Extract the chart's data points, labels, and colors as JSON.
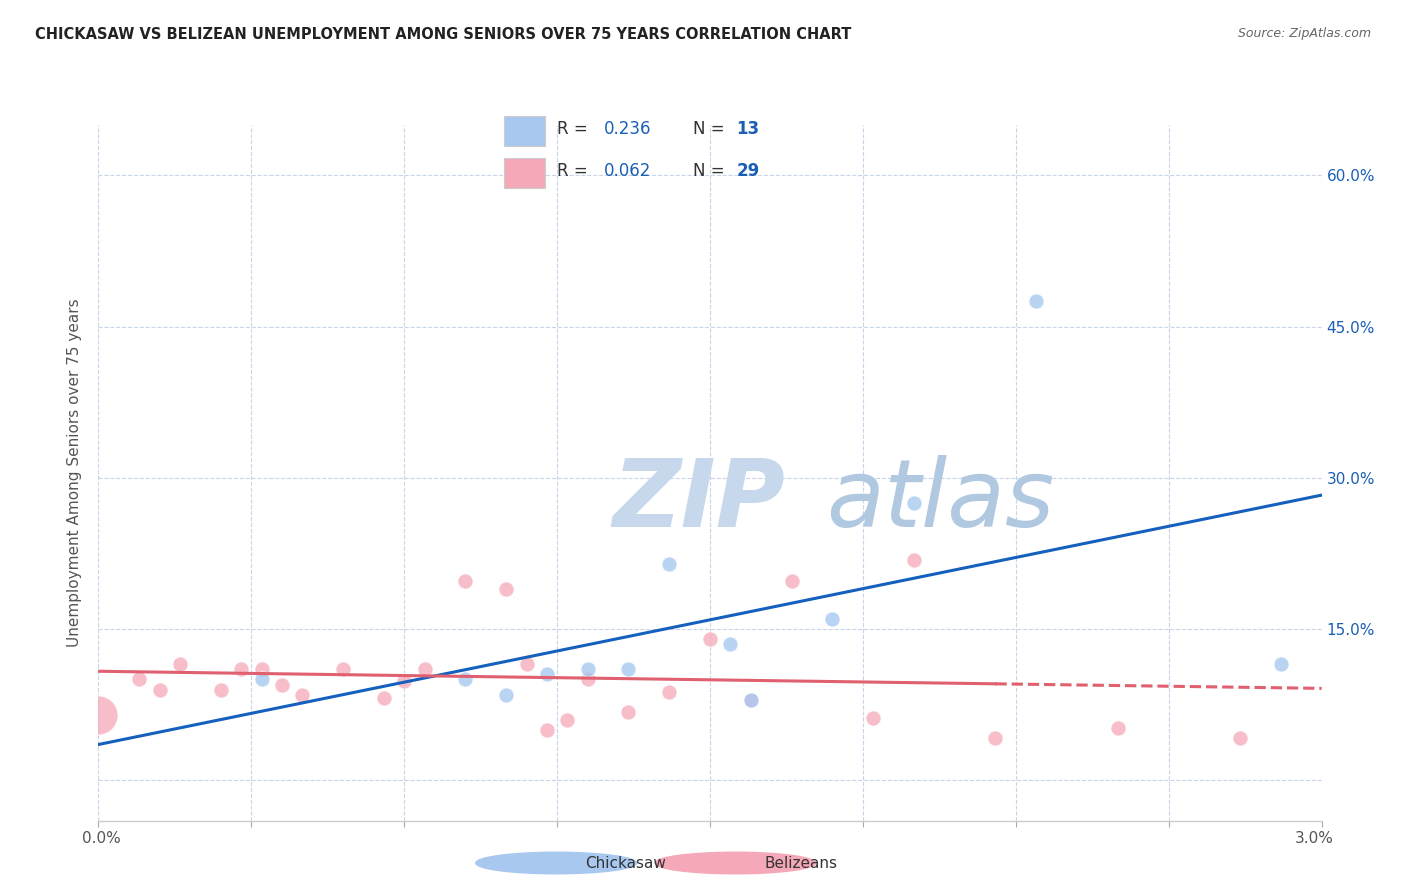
{
  "title": "CHICKASAW VS BELIZEAN UNEMPLOYMENT AMONG SENIORS OVER 75 YEARS CORRELATION CHART",
  "source": "Source: ZipAtlas.com",
  "ylabel": "Unemployment Among Seniors over 75 years",
  "xlim": [
    0.0,
    0.03
  ],
  "ylim": [
    -0.04,
    0.65
  ],
  "chickasaw_R": 0.236,
  "chickasaw_N": 13,
  "belizean_R": 0.062,
  "belizean_N": 29,
  "chickasaw_color": "#a8c8f0",
  "belizean_color": "#f5a8b8",
  "trendline_chickasaw_color": "#1560bd",
  "trendline_belizean_color": "#e06070",
  "watermark_zip": "ZIP",
  "watermark_atlas": "atlas",
  "watermark_color_zip": "#c8d8ec",
  "watermark_color_atlas": "#b0c8e0",
  "background_color": "#ffffff",
  "chickasaw_x": [
    0.004,
    0.009,
    0.01,
    0.011,
    0.012,
    0.013,
    0.014,
    0.0155,
    0.016,
    0.018,
    0.02,
    0.023,
    0.029
  ],
  "chickasaw_y": [
    0.1,
    0.1,
    0.085,
    0.105,
    0.11,
    0.11,
    0.215,
    0.135,
    0.08,
    0.16,
    0.275,
    0.475,
    0.115
  ],
  "chickasaw_size": 120,
  "belizean_x": [
    0.0,
    0.001,
    0.0015,
    0.002,
    0.003,
    0.0035,
    0.004,
    0.0045,
    0.005,
    0.006,
    0.007,
    0.0075,
    0.008,
    0.009,
    0.01,
    0.0105,
    0.011,
    0.0115,
    0.012,
    0.013,
    0.014,
    0.015,
    0.016,
    0.017,
    0.019,
    0.02,
    0.022,
    0.025,
    0.028
  ],
  "belizean_y": [
    0.065,
    0.1,
    0.09,
    0.115,
    0.09,
    0.11,
    0.11,
    0.095,
    0.085,
    0.11,
    0.082,
    0.098,
    0.11,
    0.198,
    0.19,
    0.115,
    0.05,
    0.06,
    0.1,
    0.068,
    0.088,
    0.14,
    0.08,
    0.198,
    0.062,
    0.218,
    0.042,
    0.052,
    0.042
  ],
  "belizean_size": 120,
  "belizean_large_size": 800,
  "ytick_values": [
    0.0,
    0.15,
    0.3,
    0.45,
    0.6
  ],
  "ytick_labels": [
    "",
    "15.0%",
    "30.0%",
    "45.0%",
    "60.0%"
  ],
  "grid_color": "#c8d4e8",
  "legend_R_color": "#1a5fb4",
  "legend_N_color": "#1a5fb4",
  "legend_text_color": "#333333"
}
